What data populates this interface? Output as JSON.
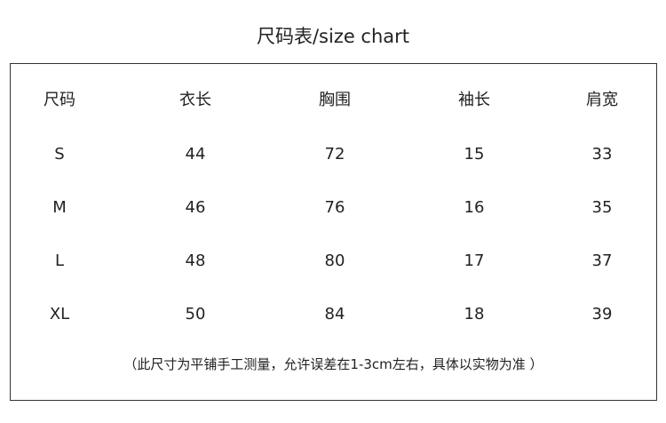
{
  "title": "尺码表/size chart",
  "table": {
    "headers": [
      "尺码",
      "衣长",
      "胸围",
      "袖长",
      "肩宽"
    ],
    "rows": [
      [
        "S",
        "44",
        "72",
        "15",
        "33"
      ],
      [
        "M",
        "46",
        "76",
        "16",
        "35"
      ],
      [
        "L",
        "48",
        "80",
        "17",
        "37"
      ],
      [
        "XL",
        "50",
        "84",
        "18",
        "39"
      ]
    ]
  },
  "note": "（此尺寸为平铺手工测量，允许误差在1-3cm左右，具体以实物为准 ）"
}
